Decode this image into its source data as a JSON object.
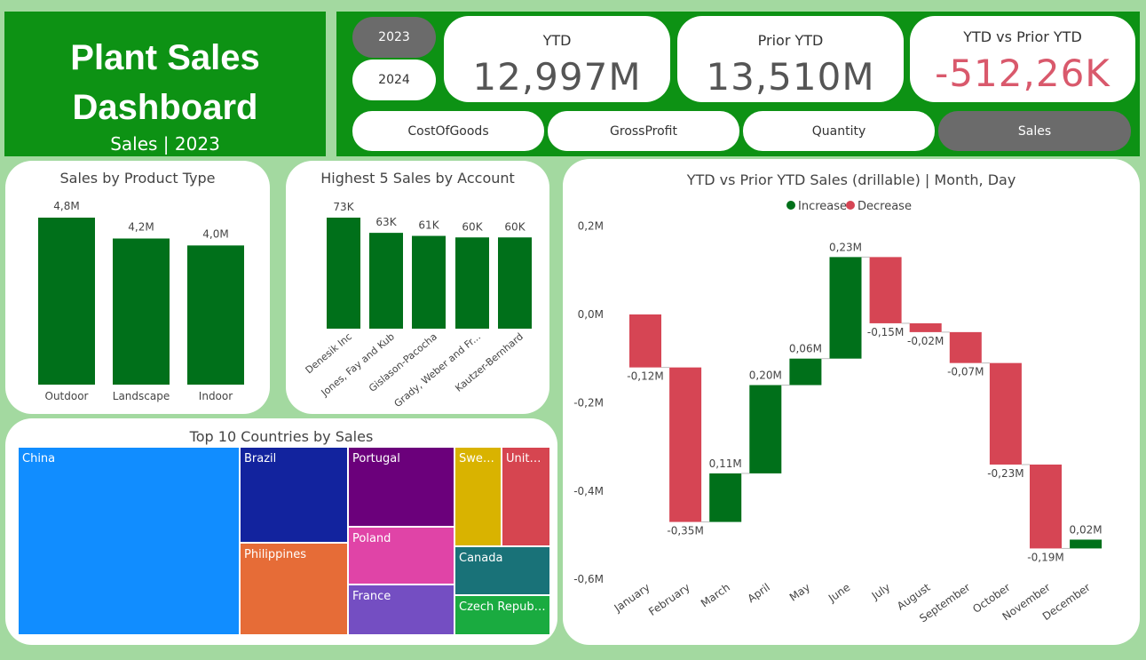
{
  "header": {
    "title_line1": "Plant Sales",
    "title_line2": "Dashboard",
    "subtitle": "Sales | 2023"
  },
  "years": [
    {
      "label": "2023",
      "selected": true
    },
    {
      "label": "2024",
      "selected": false
    }
  ],
  "kpis": {
    "ytd": {
      "label": "YTD",
      "value": "12,997M"
    },
    "prior": {
      "label": "Prior YTD",
      "value": "13,510M"
    },
    "diff": {
      "label": "YTD vs Prior YTD",
      "value": "-512,26K"
    }
  },
  "metrics": [
    {
      "label": "CostOfGoods",
      "selected": false
    },
    {
      "label": "GrossProfit",
      "selected": false
    },
    {
      "label": "Quantity",
      "selected": false
    },
    {
      "label": "Sales",
      "selected": true
    }
  ],
  "colors": {
    "brand_green": "#0d9214",
    "background": "#a3d9a0",
    "bar_green": "#00701a",
    "decrease_red": "#d64554",
    "negative_text": "#d9596c",
    "selected_button": "#6b6b6b"
  },
  "product_chart": {
    "title": "Sales by Product Type",
    "chart_data": {
      "type": "bar",
      "categories": [
        "Outdoor",
        "Landscape",
        "Indoor"
      ],
      "values": [
        4.8,
        4.2,
        4.0
      ],
      "labels": [
        "4,8M",
        "4,2M",
        "4,0M"
      ],
      "ylim": [
        0,
        4.8
      ]
    }
  },
  "account_chart": {
    "title": "Highest 5 Sales by Account",
    "chart_data": {
      "type": "bar",
      "categories": [
        "Denesik Inc",
        "Jones, Fay and Kub",
        "Gislason-Pacocha",
        "Grady, Weber and Fr...",
        "Kautzer-Bernhard"
      ],
      "values": [
        73,
        63,
        61,
        60,
        60
      ],
      "labels": [
        "73K",
        "63K",
        "61K",
        "60K",
        "60K"
      ],
      "ylim": [
        0,
        73
      ]
    }
  },
  "treemap": {
    "title": "Top 10 Countries by Sales",
    "items": [
      {
        "label": "China",
        "color": "#118dff"
      },
      {
        "label": "Brazil",
        "color": "#12239e"
      },
      {
        "label": "Philippines",
        "color": "#e66c37"
      },
      {
        "label": "Portugal",
        "color": "#6b007b"
      },
      {
        "label": "Poland",
        "color": "#e044a7"
      },
      {
        "label": "France",
        "color": "#744ec2"
      },
      {
        "label": "Swed...",
        "color": "#d9b300"
      },
      {
        "label": "Unite...",
        "color": "#d64550"
      },
      {
        "label": "Canada",
        "color": "#197278"
      },
      {
        "label": "Czech Republic",
        "color": "#1aab40"
      }
    ]
  },
  "waterfall": {
    "title": "YTD vs Prior YTD Sales (drillable) | Month, Day",
    "legend": [
      {
        "label": "Increase",
        "color": "#00701a"
      },
      {
        "label": "Decrease",
        "color": "#d64554"
      }
    ],
    "chart_data": {
      "type": "waterfall",
      "categories": [
        "January",
        "February",
        "March",
        "April",
        "May",
        "June",
        "July",
        "August",
        "September",
        "October",
        "November",
        "December"
      ],
      "values": [
        -0.12,
        -0.35,
        0.11,
        0.2,
        0.06,
        0.23,
        -0.15,
        -0.02,
        -0.07,
        -0.23,
        -0.19,
        0.02
      ],
      "labels": [
        "-0,12M",
        "-0,35M",
        "0,11M",
        "0,20M",
        "0,06M",
        "0,23M",
        "-0,15M",
        "-0,02M",
        "-0,07M",
        "-0,23M",
        "-0,19M",
        "0,02M"
      ],
      "y_ticks": [
        0.2,
        0,
        -0.2,
        -0.4,
        -0.6
      ],
      "y_tick_labels": [
        "0,2M",
        "0,0M",
        "-0,2M",
        "-0,4M",
        "-0,6M"
      ],
      "ylim": [
        -0.6,
        0.2
      ]
    }
  }
}
